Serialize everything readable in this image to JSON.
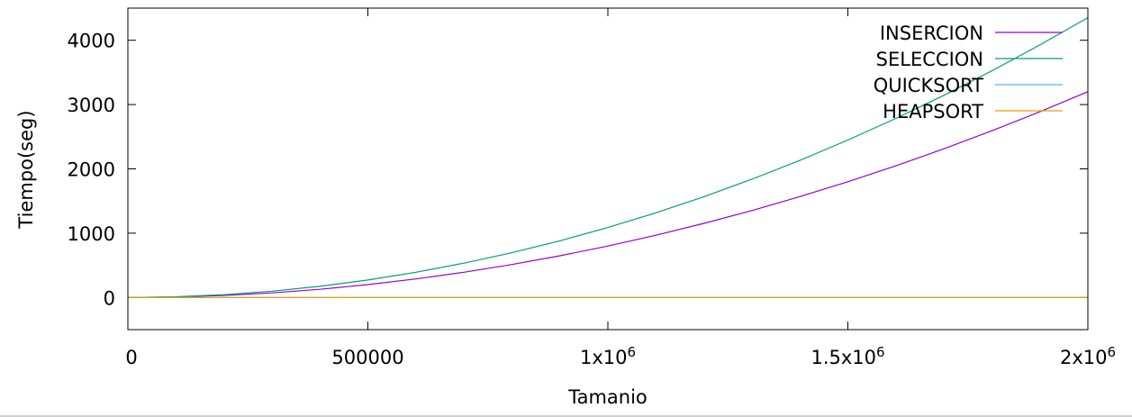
{
  "chart_data": {
    "type": "line",
    "xlabel": "Tamanio",
    "ylabel": "Tiempo(seg)",
    "xlim": [
      0,
      2000000
    ],
    "ylim": [
      -500,
      4500
    ],
    "x_ticks": [
      {
        "value": 0,
        "label": "0"
      },
      {
        "value": 500000,
        "label": "500000"
      },
      {
        "value": 1000000,
        "label": "1x10",
        "sup": "6"
      },
      {
        "value": 1500000,
        "label": "1.5x10",
        "sup": "6"
      },
      {
        "value": 2000000,
        "label": "2x10",
        "sup": "6"
      }
    ],
    "y_ticks": [
      {
        "value": 0,
        "label": "0"
      },
      {
        "value": 1000,
        "label": "1000"
      },
      {
        "value": 2000,
        "label": "2000"
      },
      {
        "value": 3000,
        "label": "3000"
      },
      {
        "value": 4000,
        "label": "4000"
      }
    ],
    "grid": false,
    "legend_position": "top-right",
    "x": [
      0,
      100000,
      200000,
      300000,
      400000,
      500000,
      600000,
      700000,
      800000,
      900000,
      1000000,
      1100000,
      1200000,
      1300000,
      1400000,
      1500000,
      1600000,
      1700000,
      1800000,
      1900000,
      2000000
    ],
    "series": [
      {
        "name": "INSERCION",
        "color": "#9400d3",
        "values": [
          0,
          8,
          32,
          72,
          128,
          200,
          288,
          392,
          512,
          648,
          800,
          968,
          1152,
          1352,
          1568,
          1800,
          2048,
          2312,
          2592,
          2888,
          3200
        ]
      },
      {
        "name": "SELECCION",
        "color": "#009e73",
        "values": [
          0,
          11,
          44,
          98,
          174,
          272,
          392,
          533,
          696,
          881,
          1088,
          1316,
          1567,
          1839,
          2132,
          2448,
          2785,
          3144,
          3525,
          3927,
          4352
        ]
      },
      {
        "name": "QUICKSORT",
        "color": "#56b4e9",
        "values": [
          0,
          0,
          0,
          0,
          0,
          0,
          0,
          0,
          0,
          0,
          0,
          0,
          0,
          0,
          0,
          0,
          0,
          0,
          0,
          0,
          0
        ]
      },
      {
        "name": "HEAPSORT",
        "color": "#e69f00",
        "values": [
          0,
          0,
          0,
          0,
          0,
          0,
          0,
          0,
          0,
          0,
          0,
          0,
          0,
          0,
          0,
          0,
          0,
          0,
          0,
          0,
          0
        ]
      }
    ]
  }
}
